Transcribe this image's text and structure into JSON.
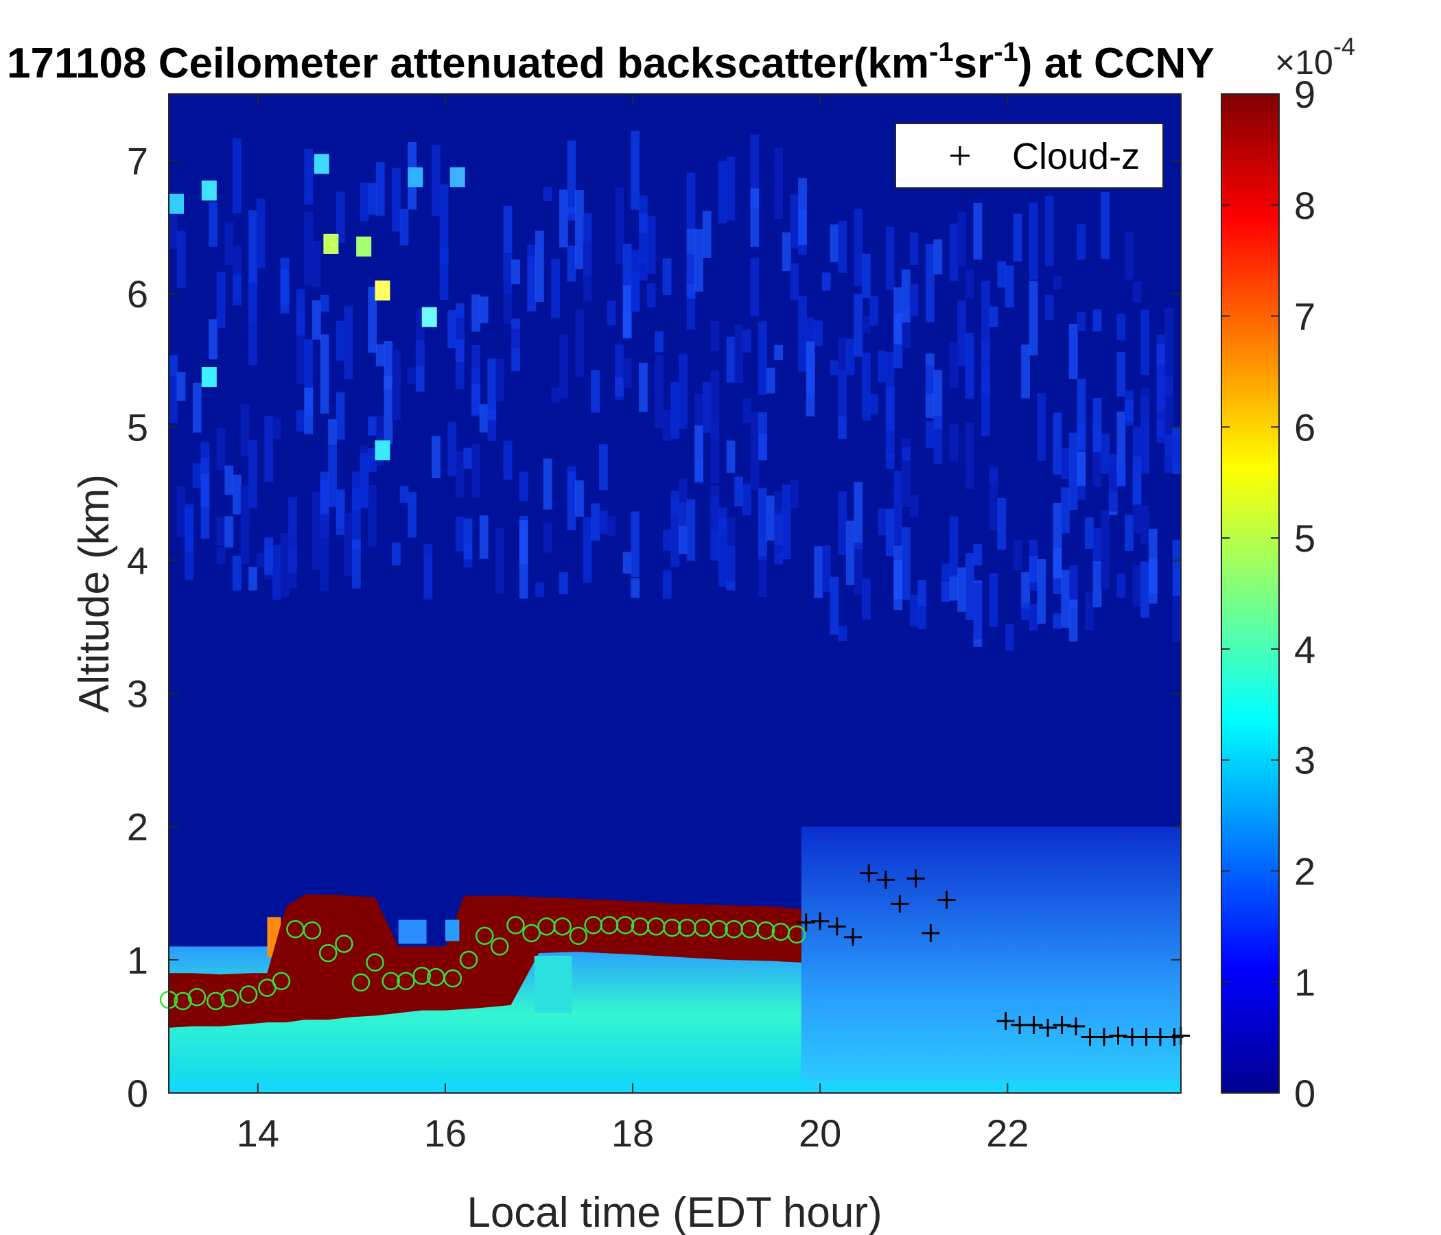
{
  "chart_data": {
    "type": "heatmap",
    "title": {
      "prefix": "171108 Ceilometer attenuated backscatter(km",
      "sup1": "-1",
      "middle": "sr",
      "sup2": "-1",
      "suffix": ") at CCNY"
    },
    "xlabel": "Local time (EDT hour)",
    "ylabel": "Altitude (km)",
    "xlim": [
      13.05,
      23.85
    ],
    "ylim": [
      0,
      7.5
    ],
    "xticks": [
      14,
      16,
      18,
      20,
      22
    ],
    "yticks": [
      0,
      1,
      2,
      3,
      4,
      5,
      6,
      7
    ],
    "colorbar": {
      "colormap": "jet",
      "range": [
        0,
        9
      ],
      "ticks": [
        0,
        1,
        2,
        3,
        4,
        5,
        6,
        7,
        8,
        9
      ],
      "exponent_base": "×10",
      "exponent_power": "-4"
    },
    "legend": {
      "entries": [
        "Cloud-z"
      ],
      "location": "top-right",
      "marker": "+"
    },
    "cloud_layer": {
      "description_values": "saturated (>9) backscatter layer",
      "x": [
        13.05,
        13.3,
        13.6,
        13.95,
        14.1,
        14.3,
        14.5,
        14.75,
        15.0,
        15.25,
        15.5,
        15.75,
        16.0,
        16.2,
        16.4,
        16.7,
        17.0,
        17.4,
        17.7,
        18.0,
        18.5,
        19.0,
        19.5,
        19.8
      ],
      "bottom": [
        0.49,
        0.5,
        0.5,
        0.52,
        0.53,
        0.53,
        0.55,
        0.55,
        0.57,
        0.58,
        0.6,
        0.62,
        0.62,
        0.63,
        0.64,
        0.66,
        1.05,
        1.06,
        1.05,
        1.04,
        1.02,
        1.0,
        0.99,
        0.98
      ],
      "top": [
        0.9,
        0.9,
        0.89,
        0.9,
        0.9,
        1.4,
        1.49,
        1.49,
        1.48,
        1.47,
        1.1,
        1.1,
        1.1,
        1.48,
        1.48,
        1.48,
        1.47,
        1.46,
        1.45,
        1.44,
        1.42,
        1.41,
        1.4,
        1.38
      ]
    },
    "series": [
      {
        "marker": "circle",
        "color": "#33e233",
        "x": [
          13.05,
          13.2,
          13.35,
          13.55,
          13.7,
          13.9,
          14.1,
          14.25,
          14.4,
          14.58,
          14.75,
          14.92,
          15.1,
          15.25,
          15.42,
          15.58,
          15.75,
          15.9,
          16.08,
          16.25,
          16.42,
          16.58,
          16.75,
          16.92,
          17.08,
          17.25,
          17.42,
          17.58,
          17.75,
          17.92,
          18.08,
          18.25,
          18.42,
          18.58,
          18.75,
          18.92,
          19.08,
          19.25,
          19.42,
          19.58,
          19.75
        ],
        "y": [
          0.7,
          0.69,
          0.72,
          0.69,
          0.71,
          0.74,
          0.79,
          0.84,
          1.23,
          1.22,
          1.05,
          1.12,
          0.83,
          0.98,
          0.84,
          0.84,
          0.88,
          0.87,
          0.86,
          1.0,
          1.18,
          1.1,
          1.26,
          1.2,
          1.25,
          1.25,
          1.18,
          1.26,
          1.26,
          1.26,
          1.25,
          1.25,
          1.24,
          1.24,
          1.24,
          1.23,
          1.23,
          1.23,
          1.22,
          1.21,
          1.19
        ]
      },
      {
        "name": "Cloud-z",
        "marker": "plus",
        "color": "#000000",
        "x": [
          19.85,
          20.0,
          20.18,
          20.35,
          20.52,
          20.7,
          20.85,
          21.02,
          21.18,
          21.35,
          21.98,
          22.13,
          22.28,
          22.43,
          22.58,
          22.73,
          22.88,
          23.03,
          23.18,
          23.33,
          23.48,
          23.63,
          23.78,
          23.85
        ],
        "y": [
          1.28,
          1.29,
          1.25,
          1.17,
          1.65,
          1.6,
          1.42,
          1.61,
          1.2,
          1.45,
          0.54,
          0.51,
          0.51,
          0.49,
          0.51,
          0.5,
          0.42,
          0.42,
          0.43,
          0.42,
          0.42,
          0.42,
          0.42,
          0.43
        ]
      }
    ]
  }
}
